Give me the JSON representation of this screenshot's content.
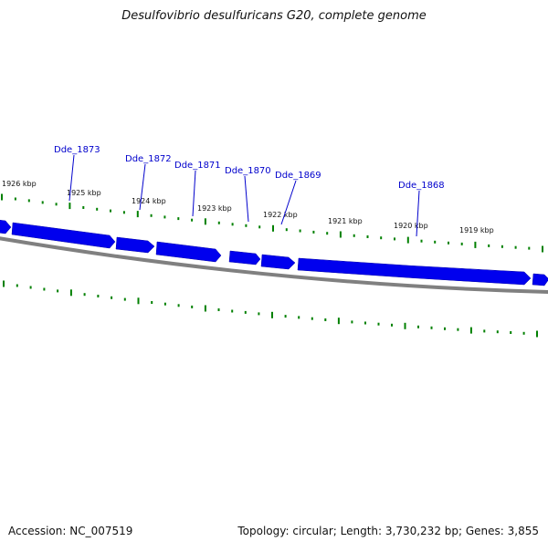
{
  "title": "Desulfovibrio desulfuricans G20, complete genome",
  "footer": {
    "accession": "Accession: NC_007519",
    "summary": "Topology: circular; Length: 3,730,232 bp; Genes: 3,855"
  },
  "colors": {
    "gene": "#0000ee",
    "backbone": "#808080",
    "tick": "#008000",
    "gene_label": "#0000cc"
  },
  "kbp_labels": [
    "1926 kbp",
    "1925 kbp",
    "1924 kbp",
    "1923 kbp",
    "1922 kbp",
    "1921 kbp",
    "1920 kbp",
    "1919 kbp"
  ],
  "genes": [
    {
      "name": "Dde_1873"
    },
    {
      "name": "Dde_1872"
    },
    {
      "name": "Dde_1871"
    },
    {
      "name": "Dde_1870"
    },
    {
      "name": "Dde_1869"
    },
    {
      "name": "Dde_1868"
    }
  ]
}
